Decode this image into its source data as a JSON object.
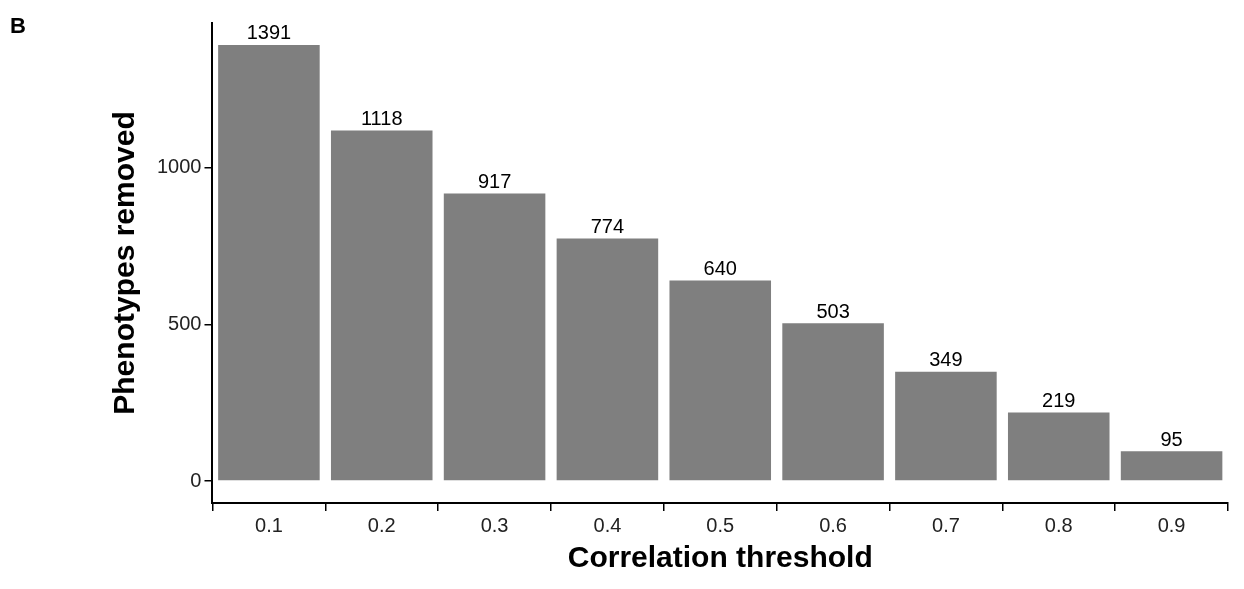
{
  "chart_data": {
    "type": "bar",
    "xlabel": "Correlation threshold",
    "ylabel": "Phenotypes removed",
    "annotations": [
      "B"
    ],
    "categories": [
      "0.1",
      "0.2",
      "0.3",
      "0.4",
      "0.5",
      "0.6",
      "0.7",
      "0.8",
      "0.9"
    ],
    "values": [
      1391,
      1118,
      917,
      774,
      640,
      503,
      349,
      219,
      95
    ],
    "color": "#7f7f7f",
    "ylim": [
      -70,
      1461
    ],
    "yticks": [
      0,
      500,
      1000
    ],
    "data_labels": true
  }
}
